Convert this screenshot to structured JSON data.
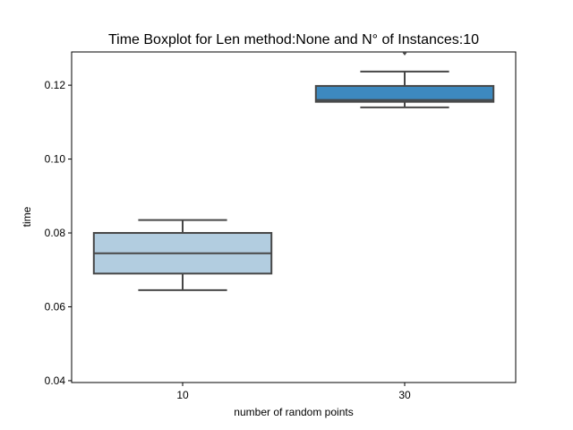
{
  "chart_data": {
    "type": "boxplot",
    "title": "Time Boxplot for Len method:None and N° of Instances:10",
    "xlabel": "number of random points",
    "ylabel": "time",
    "categories": [
      "10",
      "30"
    ],
    "ylim": [
      0.0395,
      0.129
    ],
    "yticks": [
      0.04,
      0.06,
      0.08,
      0.1,
      0.12
    ],
    "ytick_labels": [
      "0.04",
      "0.06",
      "0.08",
      "0.10",
      "0.12"
    ],
    "grid": false,
    "boxes": [
      {
        "category": "10",
        "whisker_low": 0.0645,
        "q1": 0.069,
        "median": 0.0745,
        "q3": 0.08,
        "whisker_high": 0.0835,
        "outliers": [],
        "color": "#b2cde0"
      },
      {
        "category": "30",
        "whisker_low": 0.114,
        "q1": 0.1155,
        "median": 0.116,
        "q3": 0.1198,
        "whisker_high": 0.1237,
        "outliers": [
          0.129
        ],
        "color": "#3d89bf"
      }
    ],
    "line_color": "#474747"
  }
}
